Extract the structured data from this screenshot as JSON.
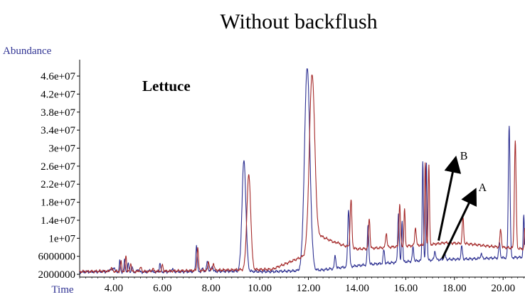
{
  "chart_data": {
    "type": "line",
    "title": "Without backflush",
    "ylabel": "Abundance",
    "xlabel": "Time",
    "annotation_text": "Lettuce",
    "xlim": [
      2.6,
      20.9
    ],
    "ylim": [
      1700000,
      49000000
    ],
    "x_ticks": [
      4,
      6,
      8,
      10,
      12,
      14,
      16,
      18,
      20
    ],
    "x_tick_labels": [
      "4.00",
      "6.00",
      "8.00",
      "10.00",
      "12.00",
      "14.00",
      "16.00",
      "18.00",
      "20.00"
    ],
    "y_ticks": [
      2000000,
      6000000,
      10000000,
      14000000,
      18000000,
      22000000,
      26000000,
      30000000,
      34000000,
      38000000,
      42000000,
      46000000
    ],
    "y_tick_labels": [
      "2000000",
      "6000000",
      "1e+07",
      "1.4e+07",
      "1.8e+07",
      "2.2e+07",
      "2.6e+07",
      "3e+07",
      "3.4e+07",
      "3.8e+07",
      "4.2e+07",
      "4.6e+07"
    ],
    "grid": false,
    "series": [
      {
        "name": "A",
        "color": "#2e3192",
        "baseline": [
          [
            2.6,
            2.5
          ],
          [
            3.5,
            2.6
          ],
          [
            5.0,
            2.5
          ],
          [
            7.0,
            2.6
          ],
          [
            9.0,
            2.7
          ],
          [
            10.5,
            2.6
          ],
          [
            12.6,
            3.0
          ],
          [
            13.5,
            3.6
          ],
          [
            14.5,
            4.2
          ],
          [
            15.5,
            4.6
          ],
          [
            16.5,
            5.0
          ],
          [
            17.5,
            5.3
          ],
          [
            18.5,
            5.4
          ],
          [
            19.5,
            5.6
          ],
          [
            20.9,
            5.8
          ]
        ],
        "peaks": [
          [
            3.85,
            3.2,
            0.04
          ],
          [
            4.0,
            3.6,
            0.04
          ],
          [
            4.25,
            4.9,
            0.025
          ],
          [
            4.45,
            5.3,
            0.025
          ],
          [
            4.6,
            4.4,
            0.025
          ],
          [
            4.75,
            3.6,
            0.03
          ],
          [
            5.0,
            3.1,
            0.04
          ],
          [
            5.5,
            3.0,
            0.04
          ],
          [
            5.9,
            4.5,
            0.025
          ],
          [
            6.4,
            3.2,
            0.04
          ],
          [
            7.4,
            8.4,
            0.03
          ],
          [
            7.65,
            3.2,
            0.04
          ],
          [
            7.85,
            5.0,
            0.03
          ],
          [
            8.05,
            4.0,
            0.03
          ],
          [
            9.35,
            27.2,
            0.08
          ],
          [
            11.95,
            48.0,
            0.11
          ],
          [
            13.1,
            6.2,
            0.03
          ],
          [
            13.65,
            16.5,
            0.035
          ],
          [
            14.45,
            12.8,
            0.03
          ],
          [
            15.1,
            7.4,
            0.03
          ],
          [
            15.7,
            15.5,
            0.03
          ],
          [
            15.85,
            14.0,
            0.025
          ],
          [
            16.3,
            8.0,
            0.03
          ],
          [
            16.7,
            27.2,
            0.025
          ],
          [
            16.85,
            26.8,
            0.025
          ],
          [
            17.2,
            7.2,
            0.03
          ],
          [
            17.6,
            6.6,
            0.03
          ],
          [
            18.3,
            8.2,
            0.03
          ],
          [
            19.1,
            6.6,
            0.03
          ],
          [
            19.85,
            9.0,
            0.03
          ],
          [
            20.25,
            35.2,
            0.035
          ],
          [
            20.85,
            15.0,
            0.025
          ]
        ]
      },
      {
        "name": "B",
        "color": "#a52a2a",
        "baseline": [
          [
            2.6,
            2.6
          ],
          [
            3.5,
            2.7
          ],
          [
            5.0,
            2.6
          ],
          [
            7.0,
            2.8
          ],
          [
            9.0,
            3.0
          ],
          [
            10.5,
            3.1
          ],
          [
            11.8,
            6.0
          ],
          [
            12.5,
            10.5
          ],
          [
            13.2,
            8.8
          ],
          [
            14.0,
            7.6
          ],
          [
            15.0,
            7.9
          ],
          [
            16.0,
            8.3
          ],
          [
            17.0,
            8.6
          ],
          [
            17.6,
            9.0
          ],
          [
            18.5,
            8.8
          ],
          [
            19.5,
            8.2
          ],
          [
            20.9,
            7.6
          ]
        ],
        "peaks": [
          [
            3.9,
            3.4,
            0.04
          ],
          [
            4.3,
            4.9,
            0.025
          ],
          [
            4.5,
            6.3,
            0.025
          ],
          [
            4.7,
            4.6,
            0.025
          ],
          [
            5.1,
            3.5,
            0.04
          ],
          [
            5.6,
            3.2,
            0.04
          ],
          [
            6.0,
            4.2,
            0.025
          ],
          [
            7.45,
            8.0,
            0.03
          ],
          [
            7.9,
            4.8,
            0.03
          ],
          [
            8.1,
            4.5,
            0.03
          ],
          [
            9.55,
            24.0,
            0.08
          ],
          [
            12.15,
            46.5,
            0.11
          ],
          [
            13.2,
            9.2,
            0.03
          ],
          [
            13.75,
            18.5,
            0.035
          ],
          [
            14.5,
            14.5,
            0.03
          ],
          [
            15.2,
            11.2,
            0.03
          ],
          [
            15.75,
            17.5,
            0.03
          ],
          [
            15.95,
            16.5,
            0.025
          ],
          [
            16.4,
            12.5,
            0.03
          ],
          [
            16.8,
            26.5,
            0.025
          ],
          [
            16.95,
            26.2,
            0.025
          ],
          [
            18.35,
            14.5,
            0.03
          ],
          [
            19.9,
            12.0,
            0.03
          ],
          [
            20.5,
            31.5,
            0.035
          ],
          [
            20.9,
            12.5,
            0.025
          ]
        ]
      }
    ],
    "annotations": [
      {
        "label": "B",
        "x_from": 17.35,
        "y_from": 9500000.0,
        "x_to": 18.0,
        "y_to": 26500000.0
      },
      {
        "label": "A",
        "x_from": 17.5,
        "y_from": 5500000.0,
        "x_to": 18.75,
        "y_to": 19500000.0
      }
    ],
    "y_units": "1e6"
  }
}
